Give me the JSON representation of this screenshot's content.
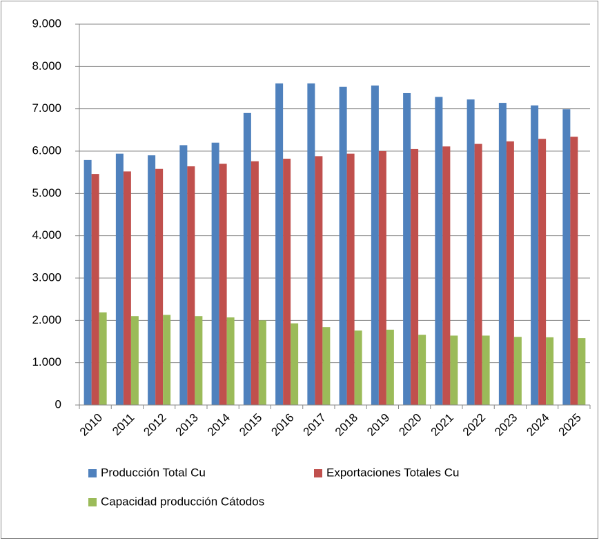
{
  "chart_data": {
    "type": "bar",
    "categories": [
      "2010",
      "2011",
      "2012",
      "2013",
      "2014",
      "2015",
      "2016",
      "2017",
      "2018",
      "2019",
      "2020",
      "2021",
      "2022",
      "2023",
      "2024",
      "2025"
    ],
    "series": [
      {
        "name": "Producción Total Cu",
        "color": "#4f81bd",
        "values": [
          5790,
          5940,
          5900,
          6140,
          6200,
          6900,
          7600,
          7600,
          7520,
          7550,
          7370,
          7280,
          7220,
          7140,
          7080,
          6990
        ]
      },
      {
        "name": "Exportaciones Totales  Cu",
        "color": "#c0504d",
        "values": [
          5460,
          5520,
          5580,
          5640,
          5700,
          5760,
          5820,
          5880,
          5940,
          6000,
          6050,
          6110,
          6170,
          6230,
          6290,
          6340
        ]
      },
      {
        "name": "Capacidad producción Cátodos",
        "color": "#9bbb59",
        "values": [
          2190,
          2100,
          2130,
          2100,
          2070,
          2000,
          1930,
          1840,
          1760,
          1780,
          1660,
          1640,
          1640,
          1610,
          1600,
          1580
        ]
      }
    ],
    "ylim": [
      0,
      9000
    ],
    "yticks": [
      0,
      {
        "value": 1000,
        "label": "1.000"
      },
      {
        "value": 2000,
        "label": "2.000"
      },
      {
        "value": 3000,
        "label": "3.000"
      },
      {
        "value": 4000,
        "label": "4.000"
      },
      {
        "value": 5000,
        "label": "5.000"
      },
      {
        "value": 6000,
        "label": "6.000"
      },
      {
        "value": 7000,
        "label": "7.000"
      },
      {
        "value": 8000,
        "label": "8.000"
      },
      {
        "value": 9000,
        "label": "9.000"
      }
    ],
    "grid": true,
    "legend": "bottom"
  }
}
